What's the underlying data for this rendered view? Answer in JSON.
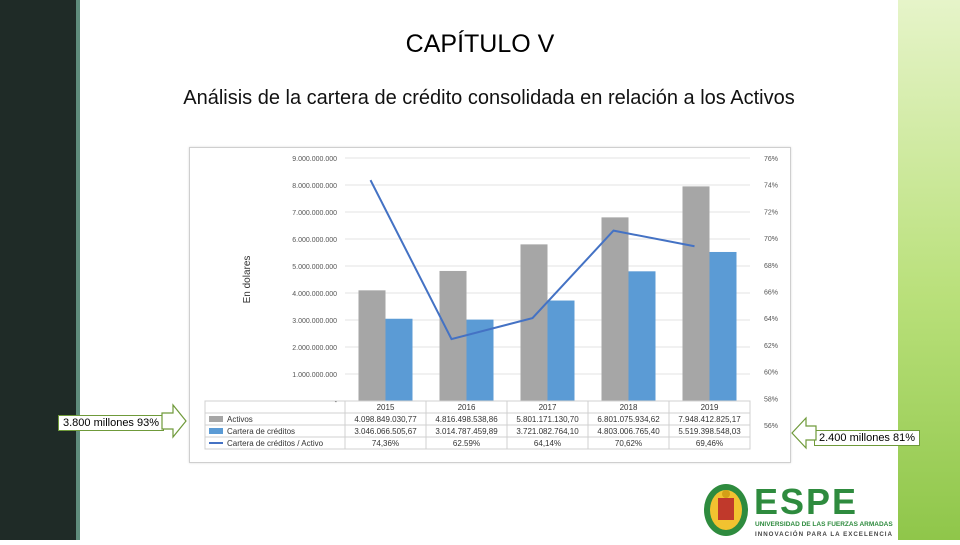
{
  "slide": {
    "title": "CAPÍTULO V",
    "subtitle": "Análisis de la cartera de crédito consolidada en relación a los Activos"
  },
  "callouts": {
    "left": "3.800 millones 93%",
    "right": "2.400 millones 81%"
  },
  "logo": {
    "name": "ESPE",
    "line1": "UNIVERSIDAD DE LAS FUERZAS ARMADAS",
    "line2": "INNOVACIÓN PARA LA EXCELENCIA"
  },
  "colors": {
    "activos": "#a6a6a6",
    "cartera": "#5b9bd5",
    "ratio": "#4472c4",
    "brand_green": "#2e8b3e"
  },
  "chart_data": {
    "type": "bar",
    "ylabel": "En dolares",
    "categories": [
      "2015",
      "2016",
      "2017",
      "2018",
      "2019"
    ],
    "ylim": [
      0,
      9000000000
    ],
    "y2lim": [
      58,
      76
    ],
    "y_ticks": [
      "9.000.000.000",
      "8.000.000.000",
      "7.000.000.000",
      "6.000.000.000",
      "5.000.000.000",
      "4.000.000.000",
      "3.000.000.000",
      "2.000.000.000",
      "1.000.000.000",
      "-"
    ],
    "y2_ticks": [
      "76%",
      "74%",
      "72%",
      "70%",
      "68%",
      "66%",
      "64%",
      "62%",
      "60%",
      "58%",
      "56%"
    ],
    "series": [
      {
        "name": "Activos",
        "kind": "bar",
        "values": [
          4098849030.77,
          4816498538.86,
          5801171130.7,
          6801075934.62,
          7948412825.17
        ],
        "labels": [
          "4.098.849.030,77",
          "4.816.498.538,86",
          "5.801.171.130,70",
          "6.801.075.934,62",
          "7.948.412.825,17"
        ]
      },
      {
        "name": "Cartera de créditos",
        "kind": "bar",
        "values": [
          3046066505.67,
          3014787459.89,
          3721082764.1,
          4803006765.4,
          5519398548.03
        ],
        "labels": [
          "3.046.066.505,67",
          "3.014.787.459,89",
          "3.721.082.764,10",
          "4.803.006.765,40",
          "5.519.398.548,03"
        ]
      },
      {
        "name": "Cartera de créditos / Activo",
        "kind": "line",
        "axis": "secondary",
        "values": [
          74.36,
          62.59,
          64.14,
          70.62,
          69.46
        ],
        "labels": [
          "74,36%",
          "62.59%",
          "64,14%",
          "70,62%",
          "69,46%"
        ]
      }
    ],
    "grid": true,
    "legend": "data-table-below"
  }
}
